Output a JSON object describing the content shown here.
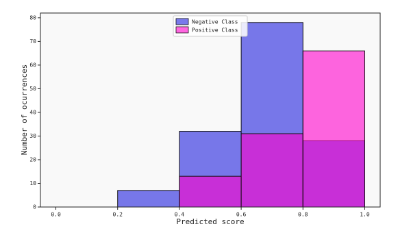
{
  "chart_data": {
    "type": "histogram",
    "xlabel": "Predicted score",
    "ylabel": "Number of ocurrences",
    "bins": [
      0,
      0.2,
      0.4,
      0.6,
      0.8,
      1.0
    ],
    "series": [
      {
        "name": "Negative Class",
        "color": "#2020dd",
        "values": [
          0,
          7,
          32,
          78,
          28
        ]
      },
      {
        "name": "Positive Class",
        "color": "#ff00cc",
        "values": [
          0,
          0,
          13,
          31,
          66
        ]
      }
    ],
    "xlim": [
      -0.05,
      1.05
    ],
    "ylim": [
      0,
      82
    ],
    "xticks": [
      {
        "value": 0,
        "label": "0.0"
      },
      0.2,
      0.4,
      0.6,
      0.8,
      {
        "value": 1.0,
        "label": "1.0"
      }
    ],
    "yticks": [
      0,
      10,
      20,
      30,
      40,
      50,
      60,
      70,
      80
    ],
    "legend": "upper center"
  }
}
